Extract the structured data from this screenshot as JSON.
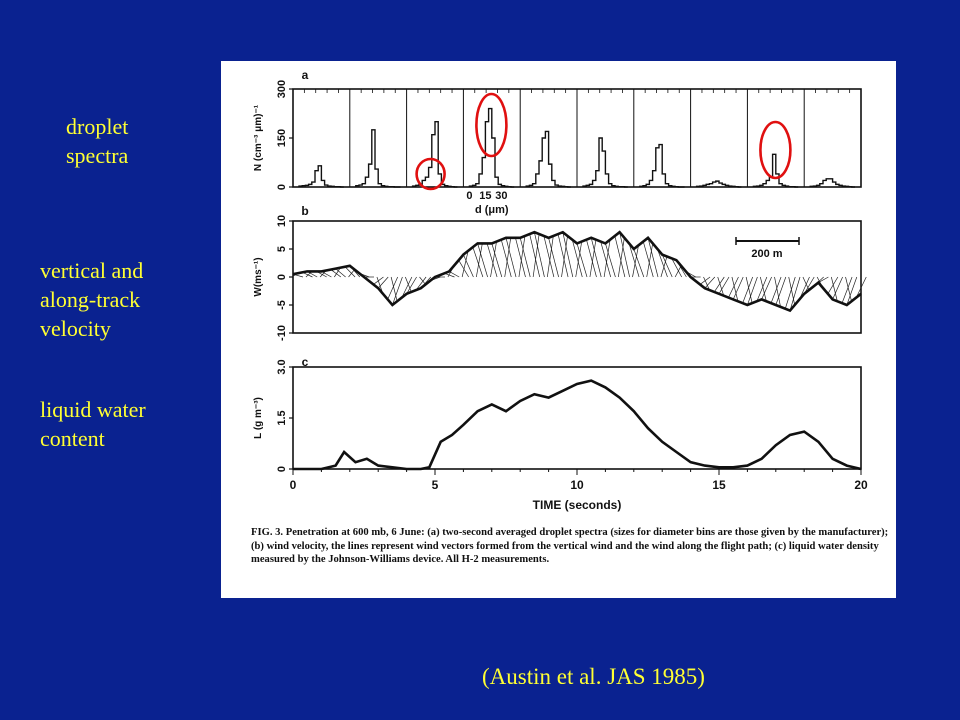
{
  "side_labels": {
    "droplet_line1": "droplet",
    "droplet_line2": "spectra",
    "velocity_line1": "vertical and",
    "velocity_line2": "along-track",
    "velocity_line3": "velocity",
    "lwc_line1": "liquid water",
    "lwc_line2": "content"
  },
  "citation": "(Austin et al. JAS 1985)",
  "caption": "FIG. 3. Penetration at 600 mb, 6 June: (a) two-second averaged droplet spectra (sizes for diameter bins are those given by the manufacturer); (b) wind velocity, the lines represent wind vectors formed from the vertical wind and the wind along the flight path; (c) liquid water density measured by the Johnson-Williams device. All H-2 measurements.",
  "colors": {
    "background": "#0a2290",
    "label_text": "#ffff33",
    "highlight": "#e01010"
  },
  "chart_data": [
    {
      "type": "bar",
      "panel": "a",
      "ylabel": "N (cm⁻³ μm)⁻¹",
      "yticks": [
        "0",
        "150",
        "300"
      ],
      "ylim": [
        0,
        300
      ],
      "xlabel": "d (μm)",
      "xticks": [
        "0",
        "15",
        "30"
      ],
      "bins_d_um": [
        2,
        5,
        8,
        11,
        14,
        17,
        20,
        23,
        26,
        29,
        32,
        35,
        38,
        41
      ],
      "series": [
        {
          "values": [
            3,
            4,
            5,
            8,
            15,
            50,
            65,
            20,
            6,
            3,
            2,
            1,
            1,
            0
          ]
        },
        {
          "values": [
            4,
            6,
            10,
            30,
            70,
            175,
            55,
            10,
            4,
            2,
            1,
            1,
            0,
            0
          ]
        },
        {
          "values": [
            3,
            5,
            8,
            20,
            30,
            60,
            160,
            200,
            40,
            8,
            4,
            2,
            1,
            0
          ]
        },
        {
          "values": [
            3,
            5,
            10,
            40,
            90,
            200,
            240,
            150,
            30,
            8,
            4,
            2,
            1,
            0
          ]
        },
        {
          "values": [
            3,
            5,
            10,
            40,
            80,
            150,
            170,
            70,
            20,
            6,
            3,
            2,
            1,
            0
          ]
        },
        {
          "values": [
            3,
            5,
            8,
            20,
            50,
            150,
            110,
            40,
            10,
            4,
            2,
            1,
            1,
            0
          ]
        },
        {
          "values": [
            2,
            4,
            8,
            20,
            50,
            120,
            130,
            40,
            10,
            4,
            2,
            1,
            0,
            0
          ]
        },
        {
          "values": [
            2,
            3,
            5,
            8,
            10,
            15,
            18,
            12,
            8,
            5,
            3,
            2,
            1,
            0
          ]
        },
        {
          "values": [
            2,
            3,
            5,
            10,
            20,
            30,
            100,
            40,
            10,
            5,
            3,
            1,
            1,
            0
          ]
        },
        {
          "values": [
            2,
            3,
            5,
            10,
            20,
            25,
            25,
            15,
            8,
            5,
            3,
            2,
            1,
            0
          ]
        }
      ]
    },
    {
      "type": "line",
      "panel": "b",
      "ylabel": "W(ms⁻¹)",
      "yticks": [
        "10",
        "5",
        "0",
        "-5",
        "-10"
      ],
      "ylim": [
        -10,
        10
      ],
      "scale_label": "200 m",
      "x": [
        0,
        0.5,
        1,
        1.5,
        2,
        2.5,
        3,
        3.5,
        4,
        4.5,
        5,
        5.5,
        6,
        6.5,
        7,
        7.5,
        8,
        8.5,
        9,
        9.5,
        10,
        10.5,
        11,
        11.5,
        12,
        12.5,
        13,
        13.5,
        14,
        14.5,
        15,
        15.5,
        16,
        16.5,
        17,
        17.5,
        18,
        18.5,
        19,
        19.5,
        20
      ],
      "series": [
        {
          "values": [
            0.5,
            1,
            1,
            1.5,
            2,
            0,
            -2,
            -5,
            -3,
            -2,
            0,
            1,
            4,
            6,
            6,
            7,
            7,
            8,
            7,
            8,
            6,
            7,
            6,
            8,
            5,
            7,
            4,
            3,
            0,
            -2,
            -3,
            -4,
            -5,
            -4,
            -5,
            -6,
            -3,
            -1,
            -4,
            -5,
            -3
          ]
        }
      ]
    },
    {
      "type": "line",
      "panel": "c",
      "ylabel": "L (g m⁻³)",
      "yticks": [
        "0",
        "1.5",
        "3.0"
      ],
      "ylim": [
        0,
        3
      ],
      "xlabel": "TIME (seconds)",
      "xticks": [
        "0",
        "5",
        "10",
        "15",
        "20"
      ],
      "xlim": [
        0,
        20
      ],
      "x": [
        0,
        1,
        1.5,
        1.8,
        2.2,
        2.6,
        3,
        3.5,
        4,
        4.5,
        4.8,
        5.2,
        5.6,
        6,
        6.5,
        7,
        7.5,
        8,
        8.5,
        9,
        9.5,
        10,
        10.5,
        11,
        11.5,
        12,
        12.5,
        13,
        13.5,
        14,
        14.5,
        15,
        15.5,
        16,
        16.5,
        17,
        17.5,
        18,
        18.5,
        19,
        19.5,
        20
      ],
      "series": [
        {
          "values": [
            0,
            0,
            0.1,
            0.5,
            0.2,
            0.3,
            0.1,
            0.05,
            0,
            0,
            0.05,
            0.8,
            1.0,
            1.3,
            1.7,
            1.9,
            1.7,
            2.0,
            2.2,
            2.1,
            2.3,
            2.5,
            2.6,
            2.4,
            2.1,
            1.7,
            1.2,
            0.8,
            0.5,
            0.2,
            0.1,
            0.05,
            0.05,
            0.1,
            0.3,
            0.7,
            1.0,
            1.1,
            0.8,
            0.3,
            0.1,
            0
          ]
        }
      ]
    }
  ]
}
